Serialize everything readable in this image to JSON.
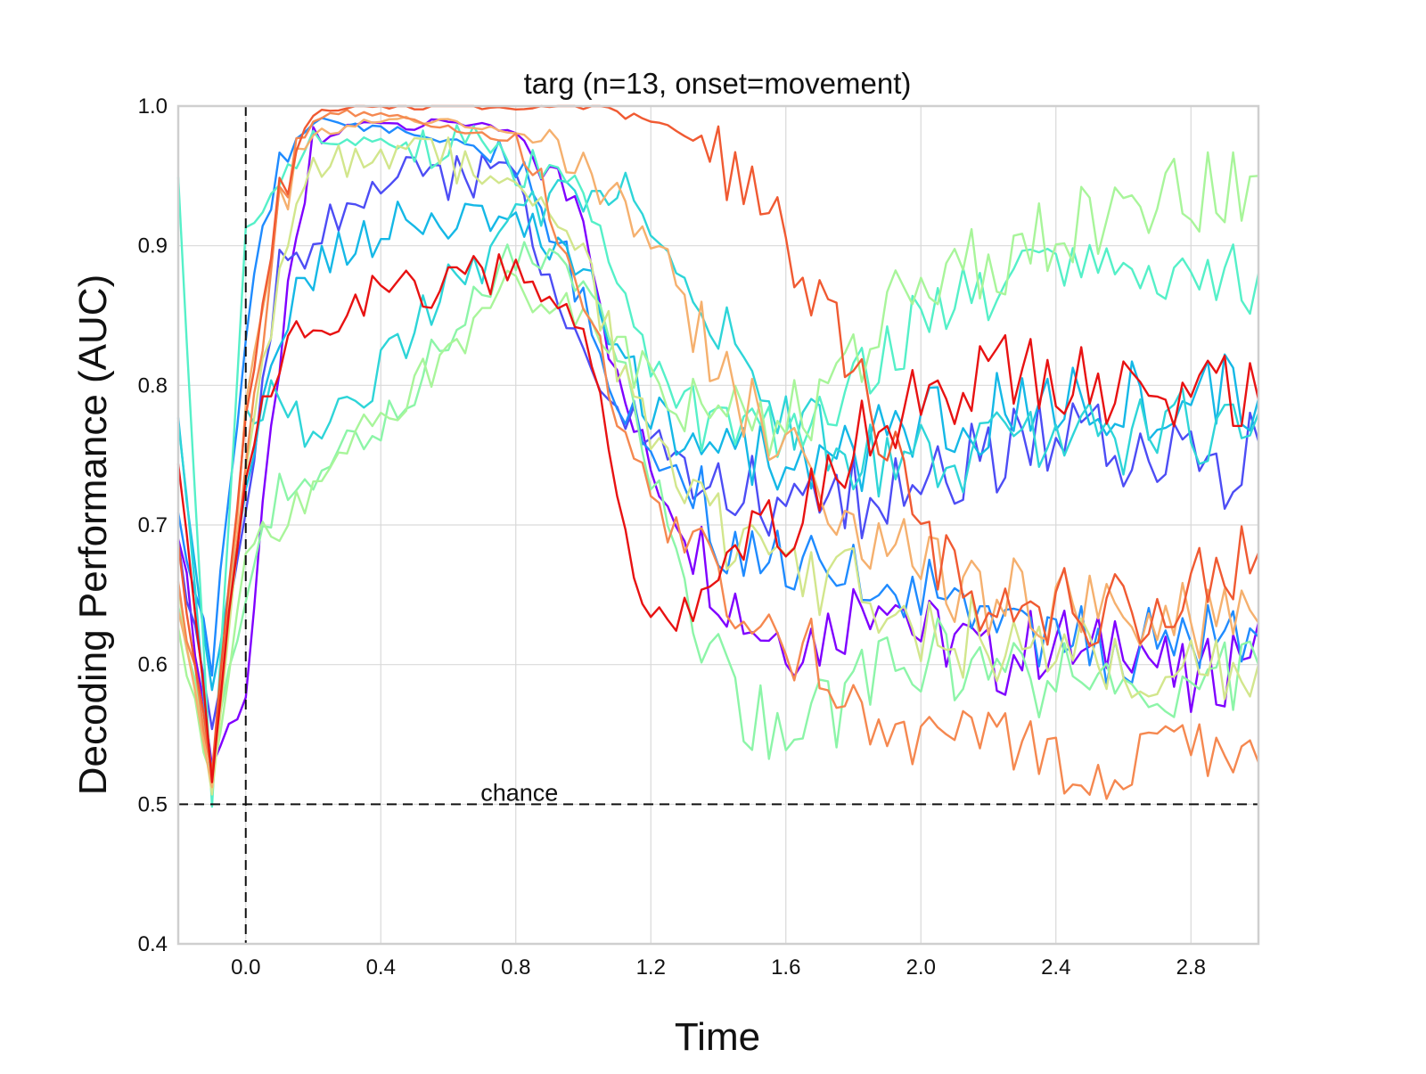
{
  "chart_data": {
    "type": "line",
    "title": "targ (n=13, onset=movement)",
    "xlabel": "Time",
    "ylabel": "Decoding Performance (AUC)",
    "xlim": [
      -0.2,
      3.0
    ],
    "ylim": [
      0.4,
      1.0
    ],
    "x_ticks": [
      "0.0",
      "0.4",
      "0.8",
      "1.2",
      "1.6",
      "2.0",
      "2.4",
      "2.8"
    ],
    "x_tick_values": [
      0.0,
      0.4,
      0.8,
      1.2,
      1.6,
      2.0,
      2.4,
      2.8
    ],
    "y_ticks": [
      "0.4",
      "0.5",
      "0.6",
      "0.7",
      "0.8",
      "0.9",
      "1.0"
    ],
    "y_tick_values": [
      0.4,
      0.5,
      0.6,
      0.7,
      0.8,
      0.9,
      1.0
    ],
    "grid": true,
    "legend": "none",
    "onset_line_x": 0.0,
    "chance_level": 0.5,
    "chance_label": "chance",
    "chance_label_x": 0.8,
    "x": [
      -0.2,
      -0.1,
      0.0,
      0.1,
      0.2,
      0.3,
      0.4,
      0.5,
      0.6,
      0.7,
      0.8,
      0.9,
      1.0,
      1.1,
      1.2,
      1.3,
      1.4,
      1.5,
      1.6,
      1.7,
      1.8,
      1.9,
      2.0,
      2.1,
      2.2,
      2.3,
      2.4,
      2.5,
      2.6,
      2.7,
      2.8,
      2.9,
      3.0
    ],
    "series": [
      {
        "color": "#7f00ff",
        "values": [
          0.7,
          0.53,
          0.58,
          0.82,
          0.97,
          0.985,
          0.99,
          0.985,
          0.99,
          0.985,
          0.98,
          0.95,
          0.93,
          0.8,
          0.74,
          0.7,
          0.66,
          0.63,
          0.62,
          0.62,
          0.64,
          0.66,
          0.62,
          0.62,
          0.6,
          0.61,
          0.62,
          0.6,
          0.63,
          0.6,
          0.58,
          0.6,
          0.63
        ]
      },
      {
        "color": "#4d4df5",
        "values": [
          0.68,
          0.56,
          0.7,
          0.88,
          0.9,
          0.93,
          0.95,
          0.95,
          0.95,
          0.95,
          0.94,
          0.88,
          0.82,
          0.78,
          0.76,
          0.74,
          0.72,
          0.72,
          0.7,
          0.71,
          0.72,
          0.72,
          0.73,
          0.74,
          0.75,
          0.76,
          0.77,
          0.76,
          0.75,
          0.75,
          0.75,
          0.74,
          0.76
        ]
      },
      {
        "color": "#1f8bff",
        "values": [
          0.7,
          0.6,
          0.84,
          0.96,
          0.99,
          0.985,
          0.985,
          0.98,
          0.975,
          0.97,
          0.96,
          0.92,
          0.86,
          0.79,
          0.76,
          0.73,
          0.7,
          0.68,
          0.67,
          0.66,
          0.66,
          0.66,
          0.65,
          0.64,
          0.62,
          0.62,
          0.62,
          0.62,
          0.61,
          0.62,
          0.62,
          0.61,
          0.62
        ]
      },
      {
        "color": "#15b8e6",
        "values": [
          0.77,
          0.58,
          0.72,
          0.84,
          0.88,
          0.9,
          0.91,
          0.92,
          0.91,
          0.92,
          0.92,
          0.9,
          0.88,
          0.83,
          0.78,
          0.76,
          0.76,
          0.75,
          0.74,
          0.74,
          0.75,
          0.76,
          0.77,
          0.77,
          0.78,
          0.78,
          0.79,
          0.79,
          0.79,
          0.79,
          0.8,
          0.8,
          0.79
        ]
      },
      {
        "color": "#2ed5d8",
        "values": [
          0.78,
          0.52,
          0.78,
          0.79,
          0.76,
          0.78,
          0.81,
          0.84,
          0.87,
          0.89,
          0.92,
          0.93,
          0.94,
          0.94,
          0.92,
          0.88,
          0.85,
          0.81,
          0.77,
          0.76,
          0.75,
          0.75,
          0.75,
          0.74,
          0.75,
          0.76,
          0.77,
          0.77,
          0.76,
          0.77,
          0.77,
          0.78,
          0.78
        ]
      },
      {
        "color": "#55f0c8",
        "values": [
          0.94,
          0.5,
          0.91,
          0.96,
          0.97,
          0.975,
          0.975,
          0.97,
          0.97,
          0.97,
          0.96,
          0.95,
          0.93,
          0.88,
          0.82,
          0.79,
          0.77,
          0.76,
          0.76,
          0.78,
          0.8,
          0.82,
          0.84,
          0.86,
          0.87,
          0.88,
          0.89,
          0.89,
          0.88,
          0.87,
          0.87,
          0.87,
          0.88
        ]
      },
      {
        "color": "#8cf5a8",
        "values": [
          0.65,
          0.53,
          0.65,
          0.72,
          0.74,
          0.76,
          0.77,
          0.8,
          0.84,
          0.87,
          0.89,
          0.89,
          0.87,
          0.82,
          0.74,
          0.66,
          0.6,
          0.56,
          0.55,
          0.56,
          0.58,
          0.6,
          0.61,
          0.6,
          0.59,
          0.59,
          0.59,
          0.59,
          0.58,
          0.59,
          0.59,
          0.59,
          0.6
        ]
      },
      {
        "color": "#a8f59a",
        "values": [
          0.62,
          0.52,
          0.68,
          0.7,
          0.72,
          0.75,
          0.78,
          0.8,
          0.82,
          0.85,
          0.87,
          0.86,
          0.85,
          0.83,
          0.8,
          0.78,
          0.77,
          0.77,
          0.77,
          0.79,
          0.82,
          0.85,
          0.87,
          0.88,
          0.89,
          0.9,
          0.91,
          0.92,
          0.93,
          0.93,
          0.94,
          0.94,
          0.95
        ]
      },
      {
        "color": "#d2e68c",
        "values": [
          0.66,
          0.5,
          0.74,
          0.88,
          0.95,
          0.96,
          0.965,
          0.96,
          0.96,
          0.96,
          0.95,
          0.93,
          0.89,
          0.82,
          0.76,
          0.72,
          0.7,
          0.68,
          0.67,
          0.66,
          0.66,
          0.64,
          0.63,
          0.62,
          0.62,
          0.61,
          0.61,
          0.61,
          0.6,
          0.6,
          0.6,
          0.6,
          0.6
        ]
      },
      {
        "color": "#f5b06e",
        "values": [
          0.64,
          0.51,
          0.78,
          0.93,
          0.98,
          0.985,
          0.99,
          0.99,
          0.99,
          0.985,
          0.98,
          0.97,
          0.95,
          0.93,
          0.9,
          0.86,
          0.82,
          0.78,
          0.75,
          0.72,
          0.7,
          0.68,
          0.67,
          0.66,
          0.65,
          0.65,
          0.64,
          0.64,
          0.64,
          0.63,
          0.63,
          0.63,
          0.63
        ]
      },
      {
        "color": "#f58850",
        "values": [
          0.66,
          0.52,
          0.75,
          0.93,
          0.99,
          0.995,
          0.995,
          0.99,
          0.985,
          0.98,
          0.97,
          0.93,
          0.86,
          0.78,
          0.72,
          0.68,
          0.66,
          0.64,
          0.62,
          0.6,
          0.58,
          0.56,
          0.55,
          0.54,
          0.54,
          0.54,
          0.54,
          0.53,
          0.53,
          0.53,
          0.53,
          0.53,
          0.53
        ]
      },
      {
        "color": "#f05a32",
        "values": [
          0.68,
          0.53,
          0.77,
          0.94,
          0.995,
          1.0,
          1.0,
          1.0,
          1.0,
          1.0,
          1.0,
          1.0,
          1.0,
          0.995,
          0.99,
          0.98,
          0.96,
          0.93,
          0.9,
          0.86,
          0.82,
          0.76,
          0.7,
          0.66,
          0.64,
          0.64,
          0.64,
          0.64,
          0.64,
          0.65,
          0.66,
          0.67,
          0.68
        ]
      },
      {
        "color": "#e81212",
        "values": [
          0.74,
          0.52,
          0.74,
          0.82,
          0.84,
          0.86,
          0.87,
          0.87,
          0.87,
          0.88,
          0.88,
          0.87,
          0.84,
          0.72,
          0.63,
          0.64,
          0.66,
          0.68,
          0.7,
          0.73,
          0.76,
          0.78,
          0.79,
          0.8,
          0.81,
          0.81,
          0.81,
          0.8,
          0.8,
          0.8,
          0.8,
          0.8,
          0.79
        ]
      }
    ]
  }
}
